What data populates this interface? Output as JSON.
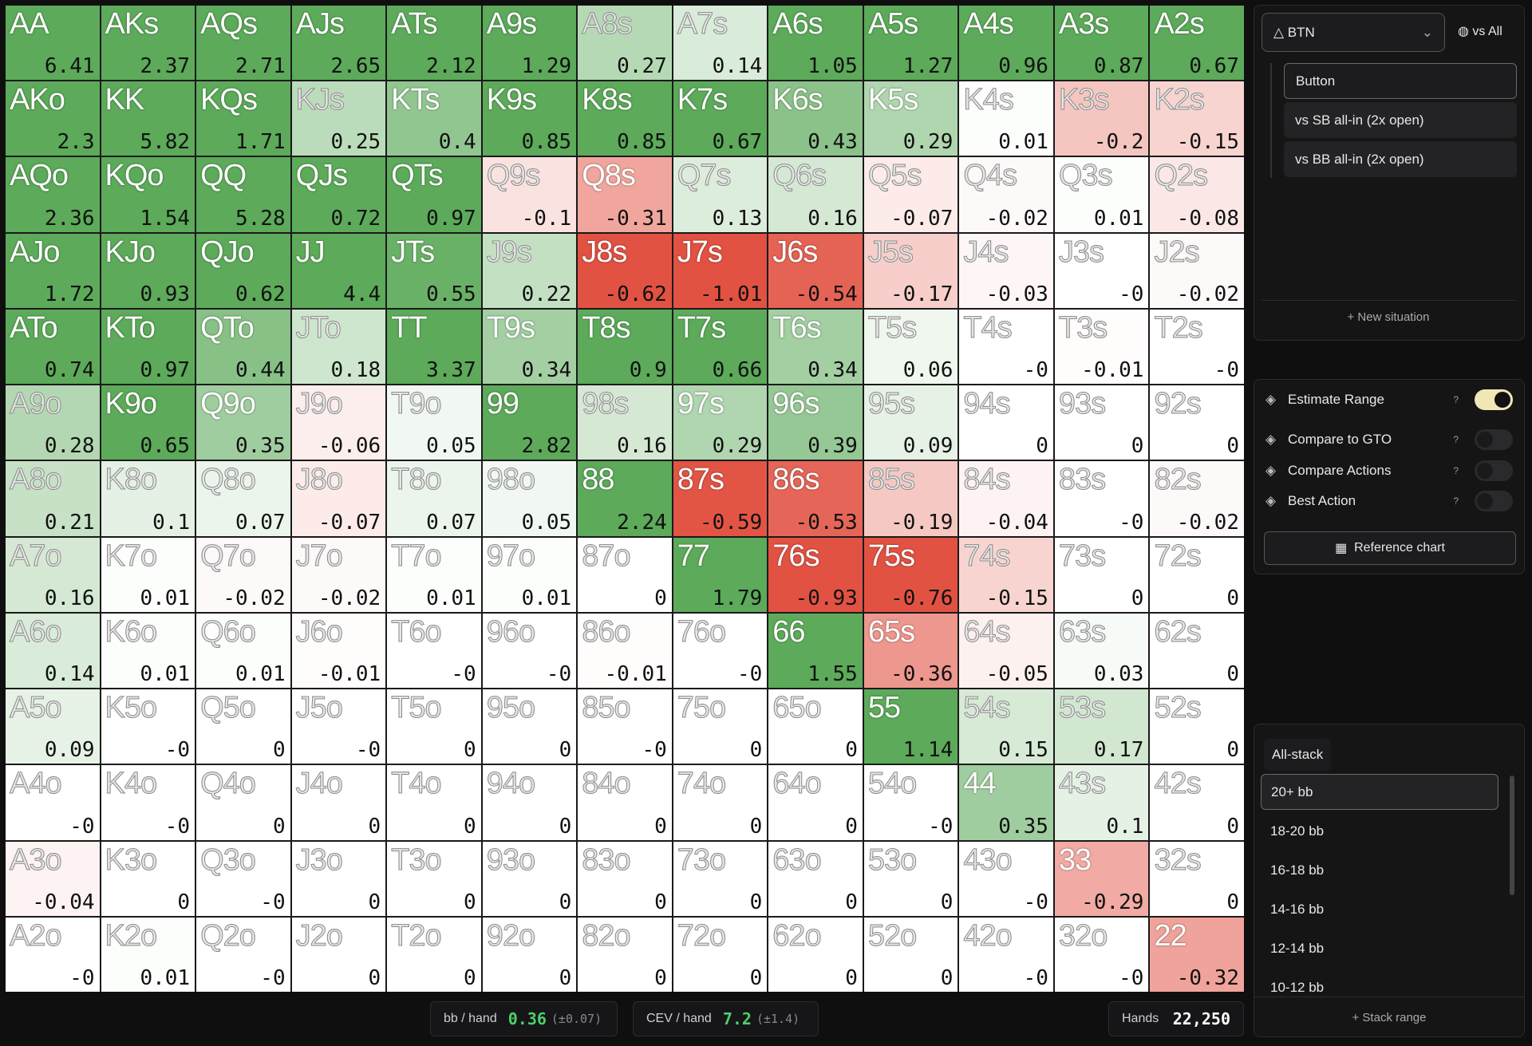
{
  "grid": {
    "rows": [
      {
        "hands": [
          "AA",
          "AKs",
          "AQs",
          "AJs",
          "ATs",
          "A9s",
          "A8s",
          "A7s",
          "A6s",
          "A5s",
          "A4s",
          "A3s",
          "A2s"
        ],
        "ev": [
          "6.41",
          "2.37",
          "2.71",
          "2.65",
          "2.12",
          "1.29",
          "0.27",
          "0.14",
          "1.05",
          "1.27",
          "0.96",
          "0.87",
          "0.67"
        ]
      },
      {
        "hands": [
          "AKo",
          "KK",
          "KQs",
          "KJs",
          "KTs",
          "K9s",
          "K8s",
          "K7s",
          "K6s",
          "K5s",
          "K4s",
          "K3s",
          "K2s"
        ],
        "ev": [
          "2.3",
          "5.82",
          "1.71",
          "0.25",
          "0.4",
          "0.85",
          "0.85",
          "0.67",
          "0.43",
          "0.29",
          "0.01",
          "-0.2",
          "-0.15"
        ]
      },
      {
        "hands": [
          "AQo",
          "KQo",
          "QQ",
          "QJs",
          "QTs",
          "Q9s",
          "Q8s",
          "Q7s",
          "Q6s",
          "Q5s",
          "Q4s",
          "Q3s",
          "Q2s"
        ],
        "ev": [
          "2.36",
          "1.54",
          "5.28",
          "0.72",
          "0.97",
          "-0.1",
          "-0.31",
          "0.13",
          "0.16",
          "-0.07",
          "-0.02",
          "0.01",
          "-0.08"
        ]
      },
      {
        "hands": [
          "AJo",
          "KJo",
          "QJo",
          "JJ",
          "JTs",
          "J9s",
          "J8s",
          "J7s",
          "J6s",
          "J5s",
          "J4s",
          "J3s",
          "J2s"
        ],
        "ev": [
          "1.72",
          "0.93",
          "0.62",
          "4.4",
          "0.55",
          "0.22",
          "-0.62",
          "-1.01",
          "-0.54",
          "-0.17",
          "-0.03",
          "-0",
          "-0.02"
        ]
      },
      {
        "hands": [
          "ATo",
          "KTo",
          "QTo",
          "JTo",
          "TT",
          "T9s",
          "T8s",
          "T7s",
          "T6s",
          "T5s",
          "T4s",
          "T3s",
          "T2s"
        ],
        "ev": [
          "0.74",
          "0.97",
          "0.44",
          "0.18",
          "3.37",
          "0.34",
          "0.9",
          "0.66",
          "0.34",
          "0.06",
          "-0",
          "-0.01",
          "-0"
        ]
      },
      {
        "hands": [
          "A9o",
          "K9o",
          "Q9o",
          "J9o",
          "T9o",
          "99",
          "98s",
          "97s",
          "96s",
          "95s",
          "94s",
          "93s",
          "92s"
        ],
        "ev": [
          "0.28",
          "0.65",
          "0.35",
          "-0.06",
          "0.05",
          "2.82",
          "0.16",
          "0.29",
          "0.39",
          "0.09",
          "0",
          "0",
          "0"
        ]
      },
      {
        "hands": [
          "A8o",
          "K8o",
          "Q8o",
          "J8o",
          "T8o",
          "98o",
          "88",
          "87s",
          "86s",
          "85s",
          "84s",
          "83s",
          "82s"
        ],
        "ev": [
          "0.21",
          "0.1",
          "0.07",
          "-0.07",
          "0.07",
          "0.05",
          "2.24",
          "-0.59",
          "-0.53",
          "-0.19",
          "-0.04",
          "-0",
          "-0.02"
        ]
      },
      {
        "hands": [
          "A7o",
          "K7o",
          "Q7o",
          "J7o",
          "T7o",
          "97o",
          "87o",
          "77",
          "76s",
          "75s",
          "74s",
          "73s",
          "72s"
        ],
        "ev": [
          "0.16",
          "0.01",
          "-0.02",
          "-0.02",
          "0.01",
          "0.01",
          "0",
          "1.79",
          "-0.93",
          "-0.76",
          "-0.15",
          "0",
          "0"
        ]
      },
      {
        "hands": [
          "A6o",
          "K6o",
          "Q6o",
          "J6o",
          "T6o",
          "96o",
          "86o",
          "76o",
          "66",
          "65s",
          "64s",
          "63s",
          "62s"
        ],
        "ev": [
          "0.14",
          "0.01",
          "0.01",
          "-0.01",
          "-0",
          "-0",
          "-0.01",
          "-0",
          "1.55",
          "-0.36",
          "-0.05",
          "0.03",
          "0"
        ]
      },
      {
        "hands": [
          "A5o",
          "K5o",
          "Q5o",
          "J5o",
          "T5o",
          "95o",
          "85o",
          "75o",
          "65o",
          "55",
          "54s",
          "53s",
          "52s"
        ],
        "ev": [
          "0.09",
          "-0",
          "0",
          "-0",
          "0",
          "0",
          "-0",
          "0",
          "0",
          "1.14",
          "0.15",
          "0.17",
          "0"
        ]
      },
      {
        "hands": [
          "A4o",
          "K4o",
          "Q4o",
          "J4o",
          "T4o",
          "94o",
          "84o",
          "74o",
          "64o",
          "54o",
          "44",
          "43s",
          "42s"
        ],
        "ev": [
          "-0",
          "-0",
          "0",
          "0",
          "0",
          "0",
          "0",
          "0",
          "0",
          "-0",
          "0.35",
          "0.1",
          "0"
        ]
      },
      {
        "hands": [
          "A3o",
          "K3o",
          "Q3o",
          "J3o",
          "T3o",
          "93o",
          "83o",
          "73o",
          "63o",
          "53o",
          "43o",
          "33",
          "32s"
        ],
        "ev": [
          "-0.04",
          "0",
          "-0",
          "0",
          "0",
          "0",
          "0",
          "0",
          "0",
          "0",
          "-0",
          "-0.29",
          "0"
        ]
      },
      {
        "hands": [
          "A2o",
          "K2o",
          "Q2o",
          "J2o",
          "T2o",
          "92o",
          "82o",
          "72o",
          "62o",
          "52o",
          "42o",
          "32o",
          "22"
        ],
        "ev": [
          "-0",
          "0.01",
          "-0",
          "0",
          "0",
          "0",
          "0",
          "0",
          "0",
          "0",
          "-0",
          "-0",
          "-0.32"
        ]
      }
    ]
  },
  "stats": [
    {
      "label": "bb / hand",
      "value": "0.36",
      "err": "(±0.07)"
    },
    {
      "label": "CEV / hand",
      "value": "7.2",
      "err": "(±1.4)"
    },
    {
      "label": "Hands",
      "value": "22,250"
    }
  ],
  "situation": {
    "position": "BTN",
    "filter": "vs All",
    "items": [
      "Button",
      "vs SB all-in (2x open)",
      "vs BB all-in (2x open)"
    ],
    "selected": 0,
    "add": "+ New situation"
  },
  "options": [
    {
      "label": "Estimate Range",
      "help": "?",
      "on": true
    },
    {
      "label": "Compare to GTO",
      "help": "?",
      "on": false
    },
    {
      "label": "Compare Actions",
      "help": "?",
      "on": false
    },
    {
      "label": "Best Action",
      "help": "?",
      "on": false
    }
  ],
  "reference": "Reference chart",
  "stacks": {
    "header": "All-stack",
    "items": [
      "20+ bb",
      "18-20 bb",
      "16-18 bb",
      "14-16 bb",
      "12-14 bb",
      "10-12 bb"
    ],
    "selected": 0,
    "add": "+ Stack range"
  }
}
